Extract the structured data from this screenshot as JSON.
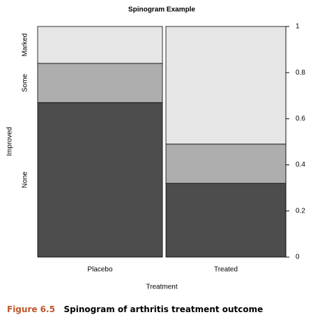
{
  "chart_data": {
    "type": "spinogram",
    "title": "Spinogram Example",
    "x_label": "Treatment",
    "y_label": "Improved",
    "categories": [
      "Placebo",
      "Treated"
    ],
    "widths": [
      0.51,
      0.49
    ],
    "series": [
      {
        "name": "None",
        "color": "#4d4d4d",
        "values": [
          0.67,
          0.32
        ]
      },
      {
        "name": "Some",
        "color": "#aeaeae",
        "values": [
          0.17,
          0.17
        ]
      },
      {
        "name": "Marked",
        "color": "#e6e6e6",
        "values": [
          0.16,
          0.51
        ]
      }
    ],
    "ylim": [
      0,
      1
    ],
    "yticks": [
      0,
      0.2,
      0.4,
      0.6,
      0.8,
      1
    ]
  },
  "caption": {
    "label": "Figure 6.5",
    "text": "Spinogram of arthritis treatment outcome"
  }
}
